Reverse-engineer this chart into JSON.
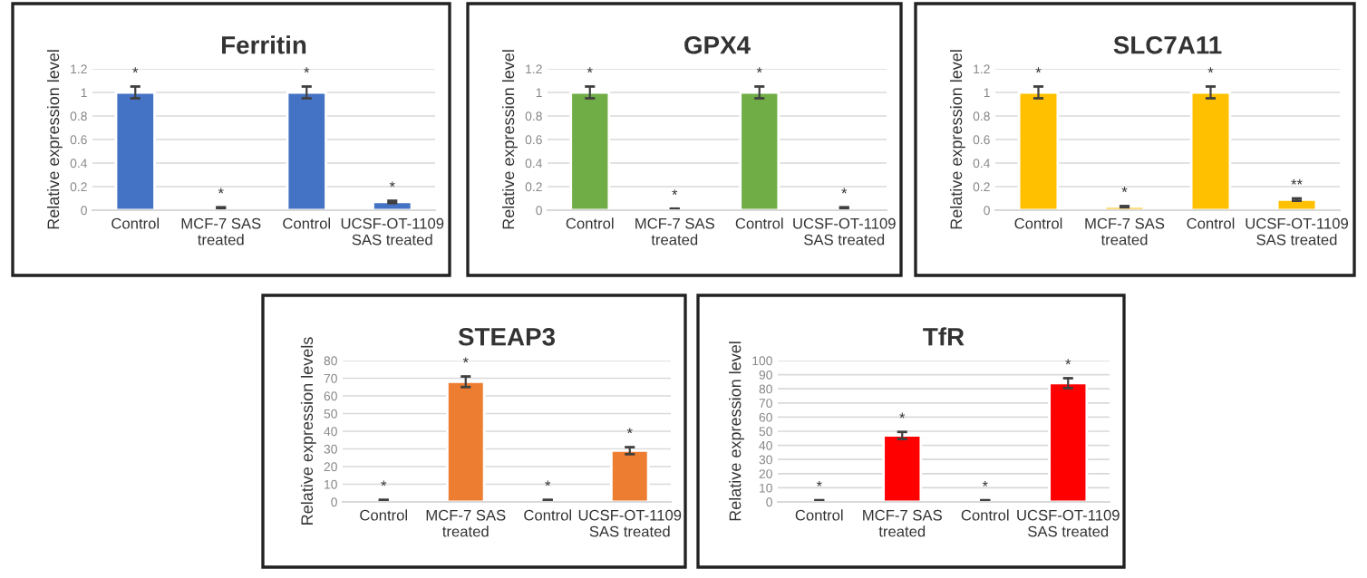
{
  "chart_data": [
    {
      "type": "bar",
      "title": "Ferritin",
      "ylabel": "Relative expression level",
      "categories": [
        "Control",
        "MCF-7 SAS\ntreated",
        "Control",
        "UCSF-OT-1109\nSAS treated"
      ],
      "values": [
        1,
        0.02,
        1,
        0.07
      ],
      "errors": [
        0.05,
        0.005,
        0.05,
        0.01
      ],
      "value_labels": [
        "*",
        "*",
        "*",
        "*"
      ],
      "color": "#4472c4",
      "ylim": [
        0,
        1.2
      ],
      "yticks": [
        0,
        0.2,
        0.4,
        0.6,
        0.8,
        1,
        1.2
      ],
      "grid": "y"
    },
    {
      "type": "bar",
      "title": "GPX4",
      "ylabel": "Relative expression level",
      "categories": [
        "Control",
        "MCF-7 SAS\ntreated",
        "Control",
        "UCSF-OT-1109\nSAS treated"
      ],
      "values": [
        1,
        0.01,
        1,
        0.02
      ],
      "errors": [
        0.05,
        0.003,
        0.05,
        0.005
      ],
      "value_labels": [
        "*",
        "*",
        "*",
        "*"
      ],
      "color": "#70ad47",
      "ylim": [
        0,
        1.2
      ],
      "yticks": [
        0,
        0.2,
        0.4,
        0.6,
        0.8,
        1,
        1.2
      ],
      "grid": "y"
    },
    {
      "type": "bar",
      "title": "SLC7A11",
      "ylabel": "Relative expression level",
      "categories": [
        "Control",
        "MCF-7 SAS\ntreated",
        "Control",
        "UCSF-OT-1109\nSAS treated"
      ],
      "values": [
        1,
        0.03,
        1,
        0.09
      ],
      "errors": [
        0.05,
        0.005,
        0.05,
        0.01
      ],
      "value_labels": [
        "*",
        "*",
        "*",
        "**"
      ],
      "color": "#ffc000",
      "ylim": [
        0,
        1.2
      ],
      "yticks": [
        0,
        0.2,
        0.4,
        0.6,
        0.8,
        1,
        1.2
      ],
      "grid": "y"
    },
    {
      "type": "bar",
      "title": "STEAP3",
      "ylabel": "Relative expression levels",
      "categories": [
        "Control",
        "MCF-7 SAS\ntreated",
        "Control",
        "UCSF-OT-1109\nSAS treated"
      ],
      "values": [
        1,
        68,
        1,
        29
      ],
      "errors": [
        0.2,
        3,
        0.2,
        2
      ],
      "value_labels": [
        "*",
        "*",
        "*",
        "*"
      ],
      "color": "#ed7d31",
      "ylim": [
        0,
        80
      ],
      "yticks": [
        0,
        10,
        20,
        30,
        40,
        50,
        60,
        70,
        80
      ],
      "grid": "y"
    },
    {
      "type": "bar",
      "title": "TfR",
      "ylabel": "Relative expression level",
      "categories": [
        "Control",
        "MCF-7 SAS\ntreated",
        "Control",
        "UCSF-OT-1109\nSAS treated"
      ],
      "values": [
        1,
        47,
        1,
        84
      ],
      "errors": [
        0.2,
        2.5,
        0.2,
        3.5
      ],
      "value_labels": [
        "*",
        "*",
        "*",
        "*"
      ],
      "color": "#ff0000",
      "ylim": [
        0,
        100
      ],
      "yticks": [
        0,
        10,
        20,
        30,
        40,
        50,
        60,
        70,
        80,
        90,
        100
      ],
      "grid": "y"
    }
  ]
}
